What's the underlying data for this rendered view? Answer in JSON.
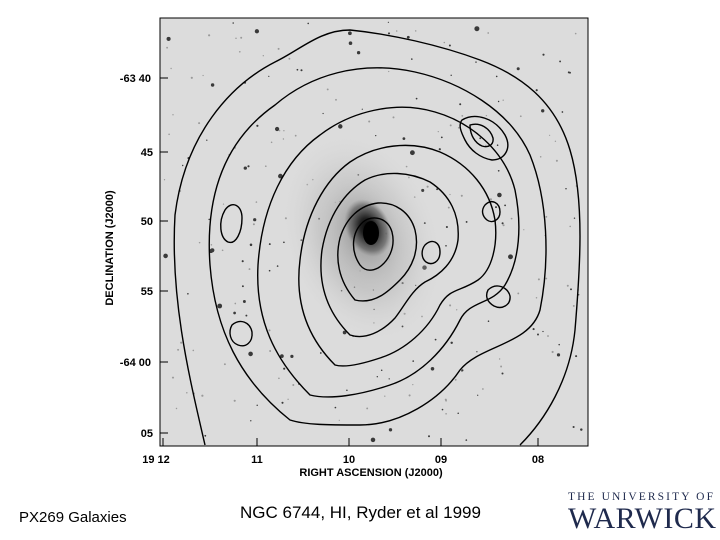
{
  "figure": {
    "y_axis_label": "DECLINATION (J2000)",
    "x_axis_label": "RIGHT ASCENSION (J2000)",
    "y_tick_labels": [
      "-63 40",
      "45",
      "50",
      "55",
      "-64 00",
      "05"
    ],
    "x_tick_labels": [
      "19 12",
      "11",
      "10",
      "09",
      "08"
    ]
  },
  "footer": {
    "course": "PX269 Galaxies",
    "caption": "NGC 6744, HI, Ryder et al 1999"
  },
  "logo": {
    "line1": "THE UNIVERSITY OF",
    "line2": "WARWICK"
  }
}
